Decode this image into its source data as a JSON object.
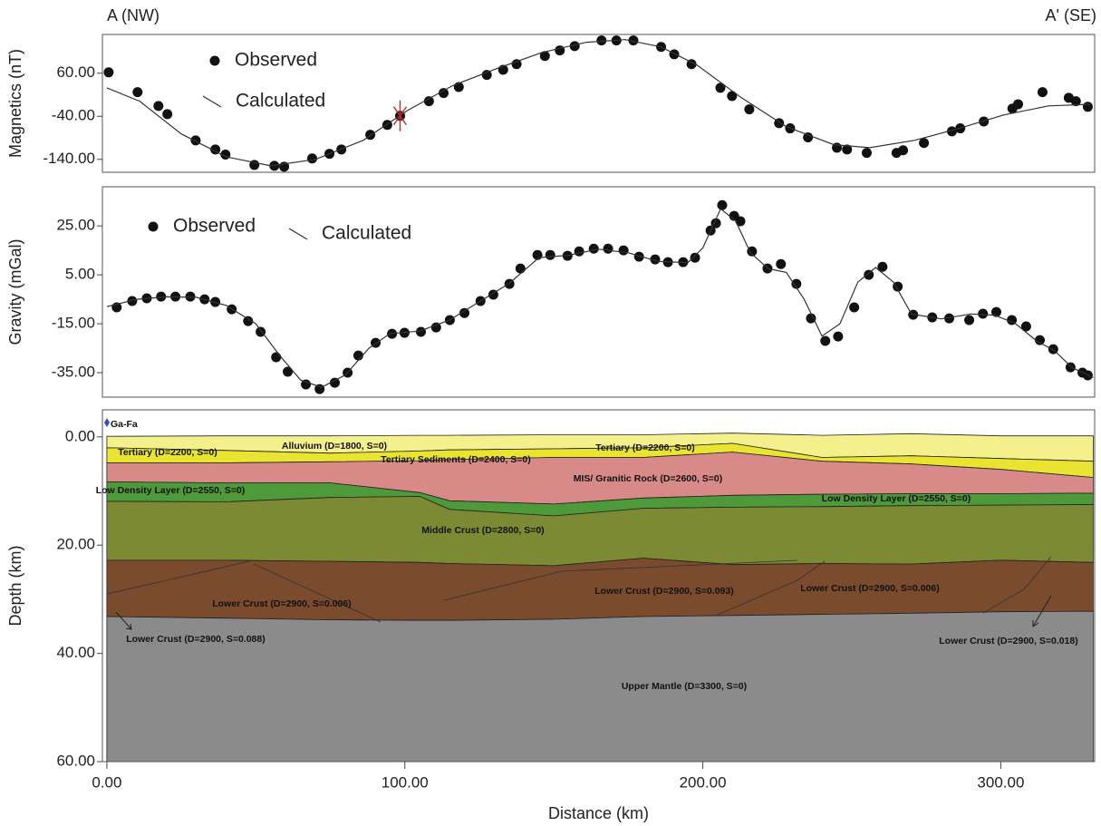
{
  "header": {
    "left": "A (NW)",
    "right": "A' (SE)"
  },
  "chart_data": [
    {
      "type": "profile",
      "ylabel": "Magnetics (nT)",
      "xlim": [
        -1.5,
        331.5
      ],
      "ylim": [
        -170,
        150
      ],
      "yticks": [
        {
          "value": 60,
          "label": "60.00"
        },
        {
          "value": -40,
          "label": "-40.00"
        },
        {
          "value": -140,
          "label": "-140.00"
        }
      ],
      "series": [
        {
          "name": "Observed",
          "mode": "markers",
          "color": "#111111",
          "x": [
            0.6,
            10.3,
            17.3,
            20.3,
            29.8,
            36.4,
            39.8,
            49.5,
            56.2,
            59.5,
            68.9,
            74.7,
            78.7,
            88.4,
            94.1,
            98.4,
            108.1,
            113,
            118.1,
            127.5,
            133,
            137.5,
            147,
            152,
            157,
            166,
            171,
            176.7,
            186,
            190.4,
            196.2,
            205.9,
            209.8,
            215.6,
            225.6,
            229.3,
            235.3,
            245,
            248.4,
            255,
            265,
            267.2,
            274.2,
            283.6,
            286.4,
            294.3,
            303.9,
            305.8,
            314,
            322.8,
            325.2,
            329.2
          ],
          "values": [
            62,
            16,
            -16,
            -35,
            -96,
            -117,
            -129,
            -153,
            -155,
            -157,
            -138,
            -127,
            -117,
            -83,
            -60,
            -39,
            -5,
            14,
            28,
            56,
            68,
            81,
            100,
            113,
            123,
            136,
            136,
            136,
            121,
            104,
            81,
            26,
            7,
            -24,
            -56,
            -68,
            -89,
            -113,
            -117,
            -125,
            -125,
            -119,
            -102,
            -75,
            -68,
            -52,
            -22,
            -12,
            16,
            3,
            -5,
            -18
          ]
        },
        {
          "name": "Calculated",
          "mode": "line",
          "color": "#333333",
          "x": [
            0,
            11,
            25,
            40,
            55,
            70,
            86,
            101,
            116,
            131,
            146,
            161,
            174,
            186,
            198,
            213,
            228,
            244,
            256,
            271,
            286,
            301,
            316,
            330
          ],
          "values": [
            26,
            -5,
            -81,
            -134,
            -155,
            -140,
            -96,
            -26,
            31,
            71,
            108,
            132,
            138,
            121,
            79,
            3,
            -64,
            -106,
            -113,
            -96,
            -68,
            -37,
            -16,
            -12
          ]
        }
      ]
    },
    {
      "type": "profile",
      "ylabel": "Gravity (mGal)",
      "xlim": [
        -1.5,
        331.5
      ],
      "ylim": [
        -45,
        41
      ],
      "yticks": [
        {
          "value": 25,
          "label": "25.00"
        },
        {
          "value": 5,
          "label": "5.00"
        },
        {
          "value": -15,
          "label": "-15.00"
        },
        {
          "value": -35,
          "label": "-35.00"
        }
      ],
      "series": [
        {
          "name": "Observed",
          "mode": "markers",
          "color": "#111111",
          "x": [
            3.3,
            8.5,
            13.4,
            18.2,
            23,
            28,
            32.8,
            36.4,
            41.9,
            47.4,
            51.6,
            56.8,
            60.7,
            66.8,
            71.4,
            76.5,
            80.8,
            84.4,
            90.2,
            95.7,
            99.9,
            105.4,
            110.5,
            115.1,
            120,
            125.4,
            129.7,
            135.1,
            138.8,
            144.5,
            148.8,
            154.6,
            158.5,
            163.4,
            168.2,
            173.4,
            178.6,
            184,
            188.3,
            193.4,
            197.4,
            202.6,
            204.4,
            206.5,
            210.5,
            212.6,
            216.5,
            221.7,
            226.2,
            231.4,
            236.3,
            241.1,
            245.4,
            250.8,
            255.7,
            260.3,
            265.4,
            270.6,
            277,
            282.7,
            289.4,
            294,
            298.5,
            303.7,
            308.5,
            313.1,
            317.6,
            323.4,
            327.4,
            329.2
          ],
          "values": [
            -8.3,
            -5.7,
            -4.6,
            -3.9,
            -3.9,
            -3.9,
            -5,
            -6.1,
            -9.1,
            -13.9,
            -18.3,
            -28.7,
            -34.6,
            -39.8,
            -41.7,
            -39.1,
            -35,
            -28,
            -22.8,
            -19.1,
            -18.7,
            -18.3,
            -16.5,
            -13.5,
            -10.6,
            -5.7,
            -3.1,
            1.3,
            7.6,
            13.1,
            13.1,
            12.8,
            14.6,
            15.7,
            15.7,
            15,
            12.4,
            11.3,
            10.2,
            10.2,
            12,
            23.1,
            26.1,
            33.5,
            29.1,
            26.9,
            14.6,
            7.6,
            9.4,
            1.3,
            -12.8,
            -22,
            -20.2,
            -8.3,
            5,
            8.3,
            0.2,
            -11.3,
            -12.4,
            -12.8,
            -13.5,
            -10.9,
            -10.2,
            -13.5,
            -16.1,
            -21.7,
            -25.4,
            -32.8,
            -35,
            -36.1
          ]
        },
        {
          "name": "Calculated",
          "mode": "line",
          "color": "#333333",
          "x": [
            0,
            10,
            20,
            30,
            40,
            50,
            58,
            65,
            72,
            80,
            88,
            95,
            105,
            115,
            125,
            135,
            145,
            155,
            165,
            175,
            185,
            195,
            200,
            206,
            211,
            216,
            222,
            228,
            234,
            240,
            246,
            252,
            258,
            264,
            270,
            280,
            290,
            298,
            305,
            312,
            318,
            324,
            331
          ],
          "values": [
            -8,
            -5,
            -4,
            -4.2,
            -7.5,
            -15,
            -28,
            -38,
            -41,
            -36,
            -25,
            -19,
            -18,
            -13.5,
            -6,
            1.5,
            12,
            13,
            15.5,
            14,
            10.5,
            10,
            16,
            32,
            27,
            14,
            7.5,
            6,
            -5,
            -20,
            -15,
            2,
            8,
            2,
            -11,
            -13,
            -11,
            -11.5,
            -15,
            -22,
            -26,
            -33,
            -37
          ]
        }
      ]
    },
    {
      "type": "section",
      "ylabel": "Depth (km)",
      "xlabel": "Distance (km)",
      "xlim": [
        -1.5,
        331.5
      ],
      "ylim": [
        -5,
        60
      ],
      "y_inverted": true,
      "xticks": [
        {
          "value": 0,
          "label": "0.00"
        },
        {
          "value": 100,
          "label": "100.00"
        },
        {
          "value": 200,
          "label": "200.00"
        },
        {
          "value": 300,
          "label": "300.00"
        }
      ],
      "yticks": [
        {
          "value": 0,
          "label": "0.00"
        },
        {
          "value": 20,
          "label": "20.00"
        },
        {
          "value": 40,
          "label": "40.00"
        },
        {
          "value": 60,
          "label": "60.00"
        }
      ],
      "x": [
        0,
        40,
        75,
        105,
        115,
        150,
        180,
        210,
        240,
        270,
        300,
        331
      ],
      "boundaries": [
        [
          -0.1,
          -0.2,
          -0.2,
          -0.3,
          -0.3,
          -0.4,
          -0.4,
          -0.7,
          -0.3,
          -0.6,
          -0.2,
          -0.2
        ],
        [
          2.0,
          2.5,
          3.0,
          2.6,
          2.4,
          2.2,
          2.0,
          1.2,
          3.8,
          3.5,
          4.0,
          4.5
        ],
        [
          4.8,
          4.8,
          4.6,
          4.4,
          4.2,
          3.8,
          3.8,
          2.8,
          4.5,
          5.0,
          6.0,
          7.5
        ],
        [
          8.3,
          8.5,
          8.5,
          10.3,
          11.8,
          12.4,
          11.3,
          10.8,
          10.6,
          10.5,
          10.5,
          10.4
        ],
        [
          11.9,
          12.0,
          11.2,
          11.0,
          13.4,
          14.6,
          13.2,
          13.0,
          12.9,
          12.7,
          12.6,
          12.5
        ],
        [
          22.8,
          22.8,
          23.0,
          23.2,
          23.4,
          23.8,
          22.4,
          23.6,
          23.4,
          23.5,
          22.8,
          23.2
        ],
        [
          33.2,
          33.5,
          33.8,
          33.9,
          33.9,
          33.7,
          33.2,
          33.0,
          32.8,
          32.6,
          32.3,
          32.2
        ],
        [
          60,
          60,
          60,
          60,
          60,
          60,
          60,
          60,
          60,
          60,
          60,
          60
        ]
      ],
      "layer_colors": [
        "#f4f08c",
        "#e9e430",
        "#d88a89",
        "#4e9a3a",
        "#7d8a34",
        "#7a4b2d",
        "#8b8b8b"
      ],
      "labels": [
        "Ga-Fa",
        "Tertiary (D=2200, S=0)",
        "Alluvium (D=1800, S=0)",
        "Tertiary Sediments (D=2400, S=0)",
        "Tertiary (D=2200, S=0)",
        "MIS/ Granitic Rock (D=2600, S=0)",
        "Low Density Layer (D=2550, S=0)",
        "Low Density Layer (D=2550, S=0)",
        "Middle Crust (D=2800, S=0)",
        "Lower Crust (D=2900, S=0.006)",
        "Lower Crust (D=2900, S=0.093)",
        "Lower Crust (D=2900, S=0.006)",
        "Lower Crust (D=2900, S=0.088)",
        "Lower Crust (D=2900, S=0.018)",
        "Upper Mantle (D=3300, S=0)"
      ]
    }
  ]
}
